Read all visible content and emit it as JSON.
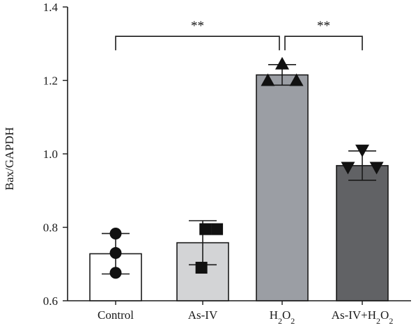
{
  "chart_data": {
    "type": "bar",
    "ylabel": "Bax/GAPDH",
    "xlabel": "",
    "title": "",
    "ylim": [
      0.6,
      1.4
    ],
    "yticks": [
      "0.6",
      "0.8",
      "1.0",
      "1.2",
      "1.4"
    ],
    "categories": [
      {
        "label": "Control",
        "sub": null
      },
      {
        "label": "As-IV",
        "sub": null
      },
      {
        "label": "H2O2",
        "sub": "H_2O_2"
      },
      {
        "label": "As-IV+H2O2",
        "sub": "As-IV+H_2O_2"
      }
    ],
    "values": [
      0.728,
      0.758,
      1.215,
      0.968
    ],
    "error": [
      0.055,
      0.06,
      0.028,
      0.04
    ],
    "bar_colors": [
      "#ffffff",
      "#d3d4d6",
      "#9b9ea4",
      "#616265"
    ],
    "marker_shapes": [
      "circle",
      "square",
      "triangle-up",
      "triangle-down"
    ],
    "points": [
      [
        {
          "x": 0,
          "y": 0.783
        },
        {
          "x": 0,
          "y": 0.73
        },
        {
          "x": 0,
          "y": 0.676
        }
      ],
      [
        {
          "x": 0.1,
          "y": 0.795
        },
        {
          "x": 0.55,
          "y": 0.795
        },
        {
          "x": -0.05,
          "y": 0.69
        }
      ],
      [
        {
          "x": -0.55,
          "y": 1.2
        },
        {
          "x": 0,
          "y": 1.245
        },
        {
          "x": 0.55,
          "y": 1.2
        }
      ],
      [
        {
          "x": -0.55,
          "y": 0.963
        },
        {
          "x": 0,
          "y": 1.01
        },
        {
          "x": 0.55,
          "y": 0.963
        }
      ]
    ],
    "significance": [
      {
        "from": 0,
        "to": 2,
        "label": "**",
        "y": 1.32
      },
      {
        "from": 2,
        "to": 3,
        "label": "**",
        "y": 1.32
      }
    ]
  }
}
